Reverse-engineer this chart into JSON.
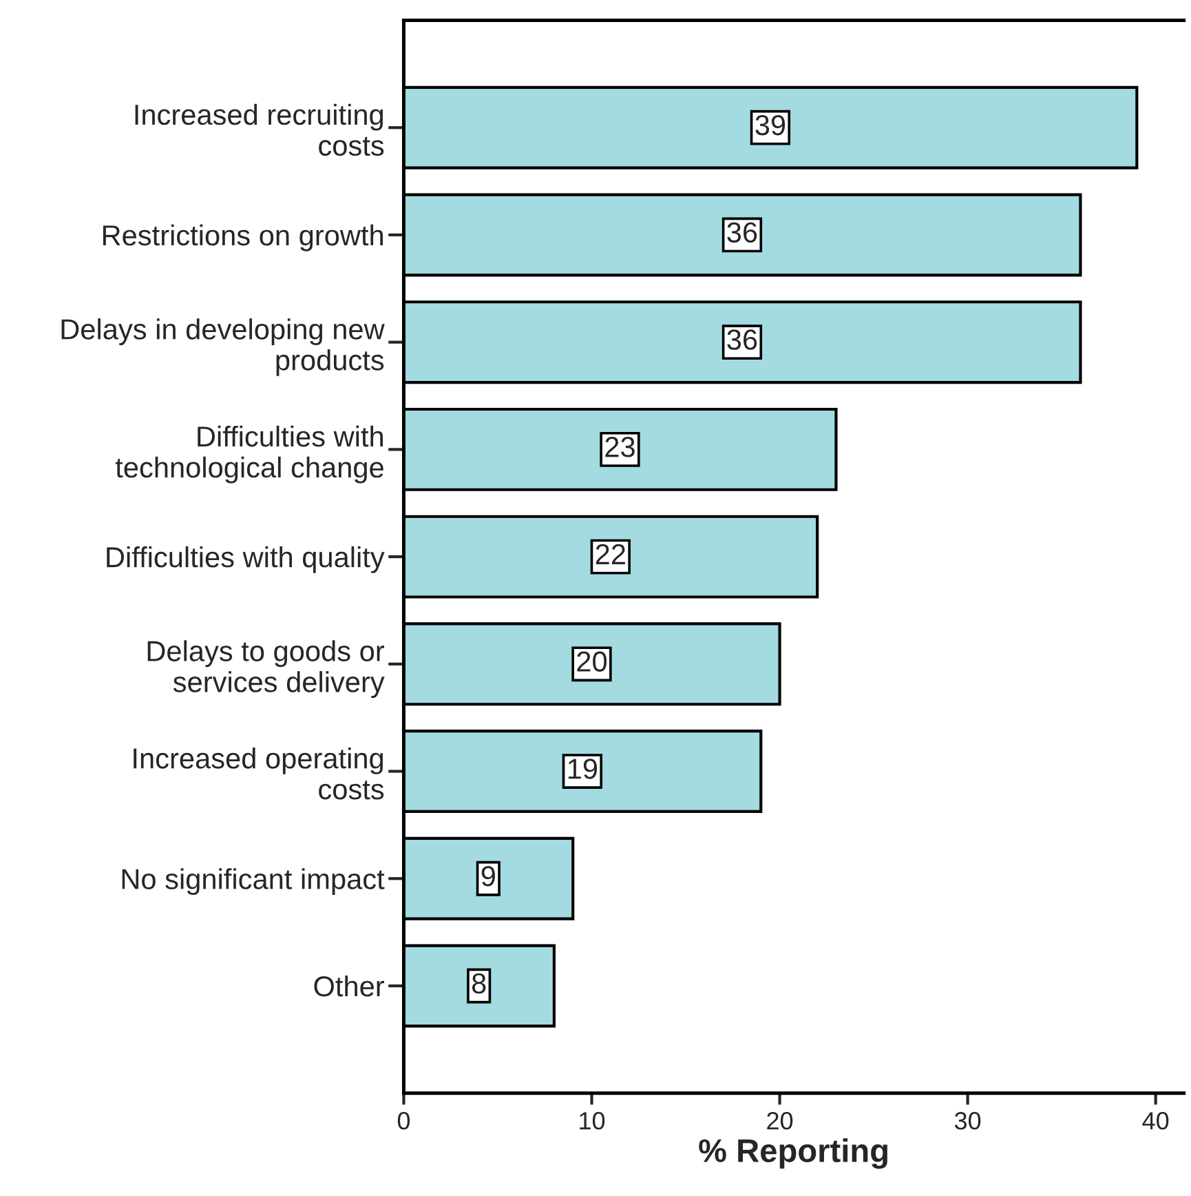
{
  "chart_data": {
    "type": "bar",
    "orientation": "horizontal",
    "xlabel": "% Reporting",
    "categories": [
      "Increased recruiting\ncosts",
      "Restrictions on growth",
      "Delays in developing new\nproducts",
      "Difficulties with\ntechnological change",
      "Difficulties with quality",
      "Delays to goods or\nservices delivery",
      "Increased operating\ncosts",
      "No significant impact",
      "Other"
    ],
    "values": [
      39,
      36,
      36,
      23,
      22,
      20,
      19,
      9,
      8
    ],
    "color": "#a3dbe0",
    "xlim": [
      0,
      41.5
    ],
    "xticks": [
      0,
      10,
      20,
      30,
      40
    ],
    "data_labels": true,
    "grid": false,
    "legend": false
  }
}
